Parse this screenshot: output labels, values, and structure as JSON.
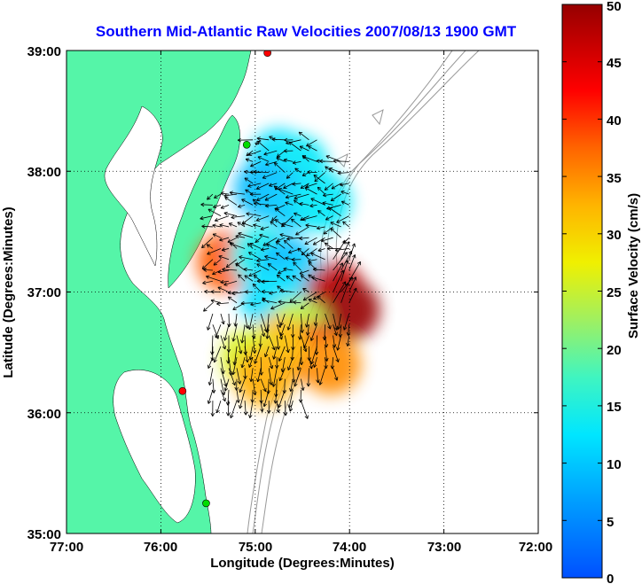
{
  "chart_data": {
    "type": "heatmap",
    "title": "Southern Mid-Atlantic Raw Velocities 2007/08/13 1900 GMT",
    "xlabel": "Longitude (Degrees:Minutes)",
    "ylabel": "Latitude (Degrees:Minutes)",
    "xlim": [
      -77,
      -72
    ],
    "ylim": [
      35,
      39
    ],
    "x_ticks": [
      "77:00",
      "76:00",
      "75:00",
      "74:00",
      "73:00",
      "72:00"
    ],
    "y_ticks": [
      "35:00",
      "36:00",
      "37:00",
      "38:00",
      "39:00"
    ],
    "grid": true,
    "colorbar": {
      "label": "Surface Velocity (cm/s)",
      "range": [
        0,
        50
      ],
      "ticks": [
        "0",
        "5",
        "10",
        "15",
        "20",
        "25",
        "30",
        "35",
        "40",
        "45",
        "50"
      ]
    },
    "cells": [
      {
        "lon": -74.75,
        "lat": 38.1,
        "speed": 12
      },
      {
        "lon": -74.55,
        "lat": 38.05,
        "speed": 13
      },
      {
        "lon": -74.9,
        "lat": 37.85,
        "speed": 9
      },
      {
        "lon": -74.6,
        "lat": 37.75,
        "speed": 10
      },
      {
        "lon": -74.3,
        "lat": 37.75,
        "speed": 13
      },
      {
        "lon": -75.3,
        "lat": 37.25,
        "speed": 38
      },
      {
        "lon": -74.95,
        "lat": 37.3,
        "speed": 14
      },
      {
        "lon": -74.65,
        "lat": 37.2,
        "speed": 9
      },
      {
        "lon": -74.45,
        "lat": 37.05,
        "speed": 11
      },
      {
        "lon": -74.15,
        "lat": 37.0,
        "speed": 47
      },
      {
        "lon": -74.0,
        "lat": 36.85,
        "speed": 50
      },
      {
        "lon": -74.85,
        "lat": 36.95,
        "speed": 12
      },
      {
        "lon": -74.55,
        "lat": 36.7,
        "speed": 24
      },
      {
        "lon": -74.4,
        "lat": 36.5,
        "speed": 44
      },
      {
        "lon": -74.75,
        "lat": 36.55,
        "speed": 32
      },
      {
        "lon": -75.05,
        "lat": 36.45,
        "speed": 26
      },
      {
        "lon": -74.2,
        "lat": 36.4,
        "speed": 35
      },
      {
        "lon": -74.9,
        "lat": 36.3,
        "speed": 33
      }
    ],
    "stations": [
      {
        "lon": -74.87,
        "lat": 38.98,
        "color": "#ff0000"
      },
      {
        "lon": -75.09,
        "lat": 38.22,
        "color": "#00dd00"
      },
      {
        "lon": -75.77,
        "lat": 36.18,
        "color": "#ff0000"
      },
      {
        "lon": -75.52,
        "lat": 35.25,
        "color": "#00dd00"
      }
    ],
    "colors": {
      "land": "#55f5a8",
      "water": "#ffffff",
      "bathymetry": "#999999",
      "title": "#0000ff",
      "vector": "#000000"
    }
  }
}
